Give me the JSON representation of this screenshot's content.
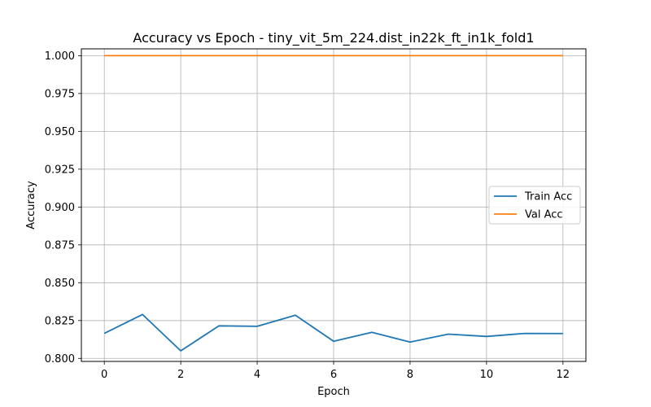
{
  "chart_data": {
    "type": "line",
    "title": "Accuracy vs Epoch - tiny_vit_5m_224.dist_in22k_ft_in1k_fold1",
    "xlabel": "Epoch",
    "ylabel": "Accuracy",
    "x": [
      0,
      1,
      2,
      3,
      4,
      5,
      6,
      7,
      8,
      9,
      10,
      11,
      12
    ],
    "xlim": [
      -0.6,
      12.6
    ],
    "ylim": [
      0.798,
      1.0045
    ],
    "xticks": [
      0,
      2,
      4,
      6,
      8,
      10,
      12
    ],
    "yticks": [
      0.8,
      0.825,
      0.85,
      0.875,
      0.9,
      0.925,
      0.95,
      0.975,
      1.0
    ],
    "xtick_labels": [
      "0",
      "2",
      "4",
      "6",
      "8",
      "10",
      "12"
    ],
    "ytick_labels": [
      "0.800",
      "0.825",
      "0.850",
      "0.875",
      "0.900",
      "0.925",
      "0.950",
      "0.975",
      "1.000"
    ],
    "grid": true,
    "legend_position": "right",
    "series": [
      {
        "name": "Train Acc",
        "color": "#1f77b4",
        "values": [
          0.8165,
          0.829,
          0.805,
          0.8215,
          0.8212,
          0.8285,
          0.8113,
          0.8172,
          0.8108,
          0.816,
          0.8145,
          0.8165,
          0.8164
        ]
      },
      {
        "name": "Val Acc",
        "color": "#ff7f0e",
        "values": [
          1.0,
          1.0,
          1.0,
          1.0,
          1.0,
          1.0,
          1.0,
          1.0,
          1.0,
          1.0,
          1.0,
          1.0,
          1.0
        ]
      }
    ]
  }
}
